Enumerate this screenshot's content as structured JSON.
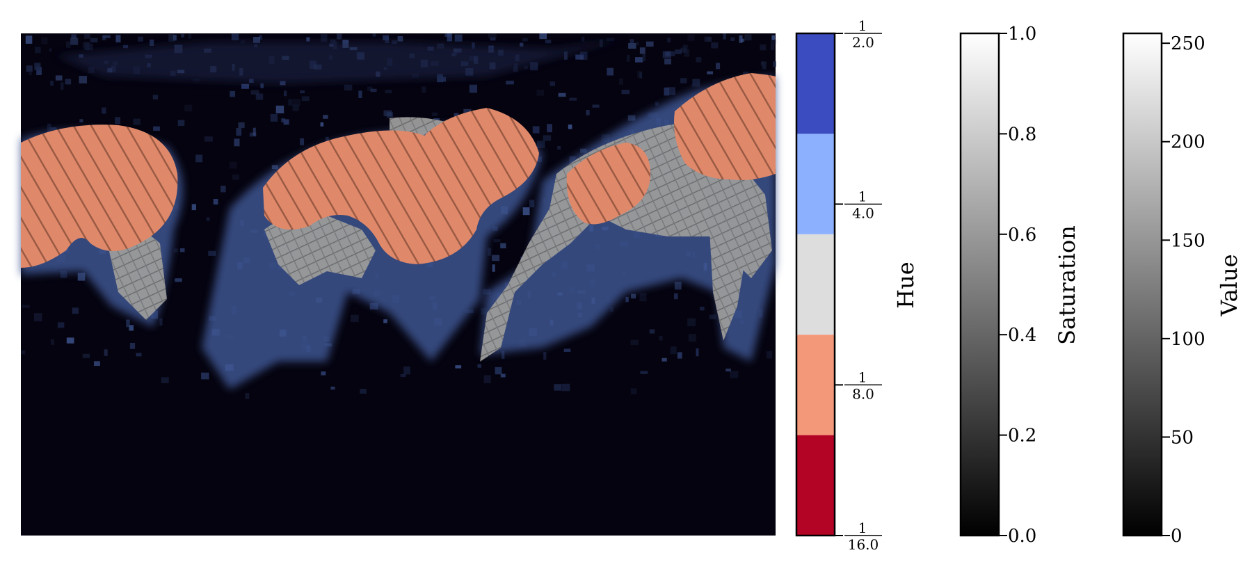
{
  "chart_data": [
    {
      "type": "heatmap",
      "description_kind": "hsv-encoded image panel",
      "axes_visible": false,
      "palette": {
        "background": "#05030f",
        "dark_blue": "#1c2a4a",
        "blue": "#5b7ab8",
        "grey": "#8c8c8c",
        "light_grey": "#c8c8c8",
        "salmon": "#e0896a",
        "stripe": "#9a5a44"
      }
    },
    {
      "type": "heatmap",
      "kind": "colorbar",
      "label": "Hue",
      "discrete": true,
      "segments": [
        {
          "color": "#b40426"
        },
        {
          "color": "#f4987a"
        },
        {
          "color": "#dddddd"
        },
        {
          "color": "#8db0fe"
        },
        {
          "color": "#3b4cc0"
        }
      ],
      "ticks": [
        {
          "value": 0,
          "num": "1",
          "den": "16.0"
        },
        {
          "value": 1.5,
          "num": "1",
          "den": "8.0"
        },
        {
          "value": 3.3,
          "num": "1",
          "den": "4.0"
        },
        {
          "value": 5,
          "num": "1",
          "den": "2.0"
        }
      ],
      "range": [
        0,
        5
      ]
    },
    {
      "type": "heatmap",
      "kind": "colorbar",
      "label": "Saturation",
      "gradient": [
        "#000000",
        "#ffffff"
      ],
      "range": [
        0.0,
        1.0
      ],
      "ticks": [
        "0.0",
        "0.2",
        "0.4",
        "0.6",
        "0.8",
        "1.0"
      ],
      "tick_values": [
        0.0,
        0.2,
        0.4,
        0.6,
        0.8,
        1.0
      ]
    },
    {
      "type": "heatmap",
      "kind": "colorbar",
      "label": "Value",
      "gradient": [
        "#000000",
        "#ffffff"
      ],
      "range": [
        0,
        255
      ],
      "ticks": [
        "0",
        "50",
        "100",
        "150",
        "200",
        "250"
      ],
      "tick_values": [
        0,
        50,
        100,
        150,
        200,
        250
      ]
    }
  ]
}
